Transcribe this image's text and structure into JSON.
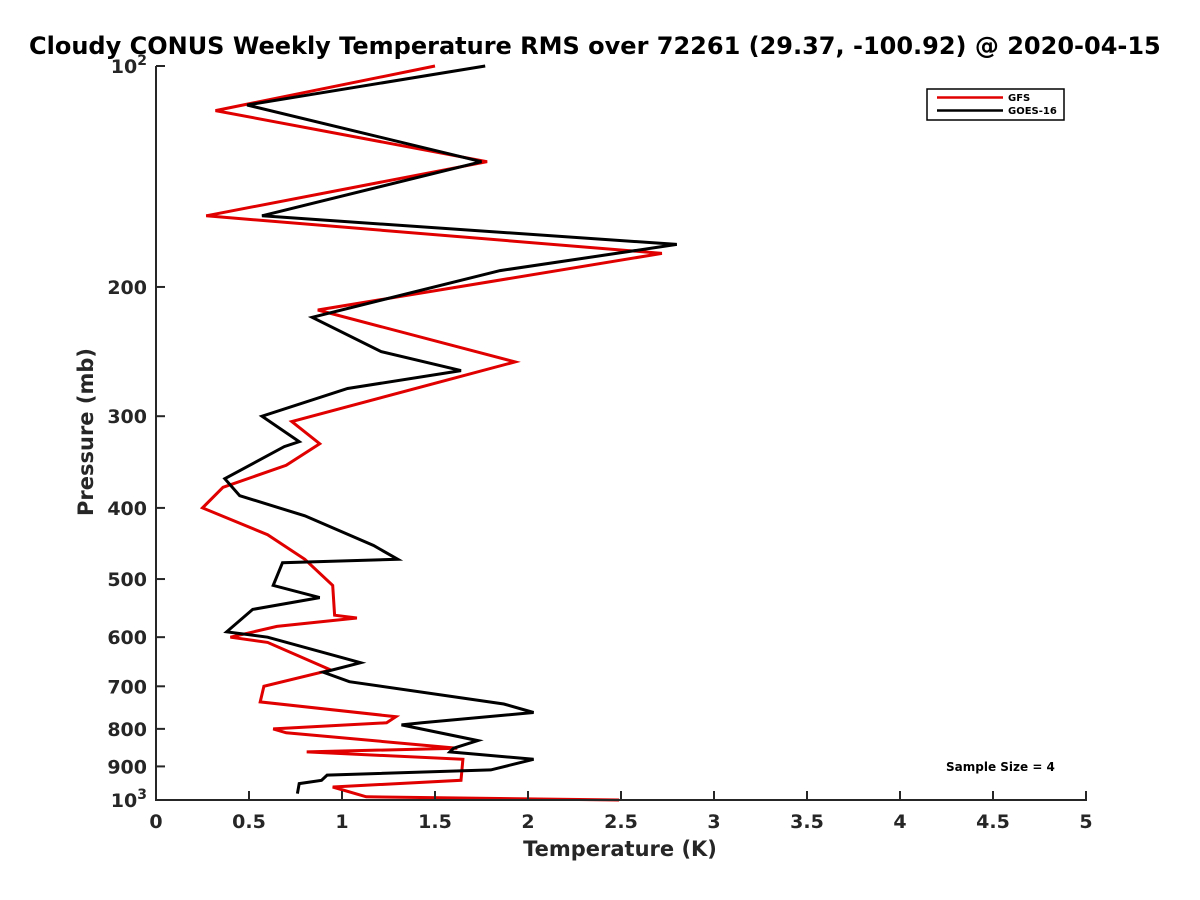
{
  "chart_data": {
    "type": "line",
    "title": "Cloudy CONUS Weekly Temperature RMS over 72261 (29.37, -100.92) @ 2020-04-15",
    "xlabel": "Temperature (K)",
    "ylabel": "Pressure (mb)",
    "xlim": [
      0,
      5
    ],
    "ylim": [
      100,
      1000
    ],
    "y_scale": "log",
    "y_reversed": true,
    "grid": false,
    "legend_position": "top-right",
    "x_ticks": [
      "0",
      "0.5",
      "1",
      "1.5",
      "2",
      "2.5",
      "3",
      "3.5",
      "4",
      "4.5",
      "5"
    ],
    "x_tick_values": [
      0,
      0.5,
      1,
      1.5,
      2,
      2.5,
      3,
      3.5,
      4,
      4.5,
      5
    ],
    "y_ticks": [
      {
        "value": 100,
        "base": "10",
        "exp": "2"
      },
      {
        "value": 200,
        "label": "200"
      },
      {
        "value": 300,
        "label": "300"
      },
      {
        "value": 400,
        "label": "400"
      },
      {
        "value": 500,
        "label": "500"
      },
      {
        "value": 600,
        "label": "600"
      },
      {
        "value": 700,
        "label": "700"
      },
      {
        "value": 800,
        "label": "800"
      },
      {
        "value": 900,
        "label": "900"
      },
      {
        "value": 1000,
        "base": "10",
        "exp": "3"
      }
    ],
    "annotation": "Sample Size = 4",
    "series": [
      {
        "name": "GFS",
        "color": "#e00000",
        "x": [
          1.5,
          0.32,
          1.78,
          0.27,
          2.72,
          0.87,
          1.93,
          0.73,
          0.88,
          0.7,
          0.36,
          0.25,
          0.6,
          0.8,
          0.95,
          0.96,
          1.08,
          0.65,
          0.4,
          0.6,
          0.94,
          0.58,
          0.56,
          1.29,
          1.24,
          0.63,
          0.7,
          1.62,
          0.81,
          1.65,
          1.64,
          0.95,
          1.13,
          2.49
        ],
        "y": [
          100,
          115,
          135,
          160,
          180,
          215,
          253,
          305,
          327,
          350,
          375,
          400,
          435,
          470,
          510,
          560,
          565,
          580,
          600,
          610,
          665,
          700,
          735,
          770,
          785,
          800,
          810,
          850,
          860,
          880,
          940,
          960,
          990,
          1000
        ]
      },
      {
        "name": "GOES-16",
        "color": "#000000",
        "x": [
          1.77,
          0.49,
          1.75,
          0.57,
          2.8,
          1.85,
          0.84,
          1.21,
          1.64,
          1.03,
          0.57,
          0.77,
          0.69,
          0.37,
          0.45,
          0.8,
          1.17,
          1.3,
          0.68,
          0.63,
          0.88,
          0.52,
          0.38,
          0.6,
          1.1,
          0.9,
          1.04,
          1.87,
          2.03,
          1.43,
          1.32,
          1.73,
          1.6,
          1.58,
          2.03,
          1.8,
          0.92,
          0.89,
          0.77,
          0.76
        ],
        "y": [
          100,
          113,
          135,
          160,
          175,
          190,
          220,
          245,
          260,
          275,
          300,
          325,
          330,
          365,
          385,
          410,
          450,
          470,
          475,
          510,
          530,
          550,
          590,
          600,
          650,
          670,
          690,
          740,
          760,
          785,
          790,
          830,
          850,
          860,
          880,
          910,
          925,
          940,
          950,
          980
        ]
      }
    ]
  }
}
